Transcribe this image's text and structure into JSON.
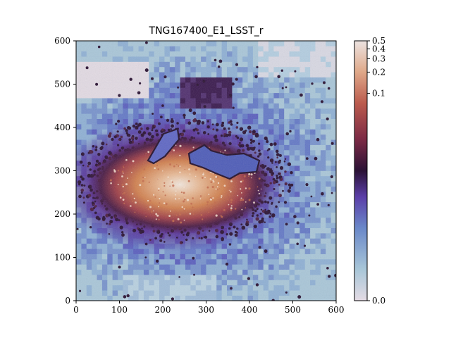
{
  "chart_data": {
    "type": "heatmap",
    "title": "TNG167400_E1_LSST_r",
    "xlabel": "",
    "ylabel": "",
    "xlim": [
      0,
      600
    ],
    "ylim": [
      0,
      600
    ],
    "x_ticks": [
      0,
      100,
      200,
      300,
      400,
      500,
      600
    ],
    "y_ticks": [
      0,
      100,
      200,
      300,
      400,
      500,
      600
    ],
    "colorbar": {
      "ticks": [
        "0.0",
        "0.1",
        "0.2",
        "0.3",
        "0.4",
        "0.5"
      ],
      "tick_values": [
        0.0,
        0.1,
        0.2,
        0.3,
        0.4,
        0.5
      ],
      "scale": "nonlinear (compressed near top)",
      "colormap": "twilight-like",
      "range": [
        0.0,
        0.5
      ]
    },
    "colors": {
      "low": "#e6dde6",
      "light_blue": "#9fbfd3",
      "blue": "#5d73c4",
      "purple": "#5b2b8e",
      "dark": "#2e1538",
      "red": "#a4404e",
      "orange": "#d98a58",
      "high": "#efe3db"
    },
    "features": [
      {
        "kind": "core",
        "center": [
          240,
          260
        ],
        "radii": [
          230,
          110
        ],
        "level": "high"
      },
      {
        "kind": "blob",
        "center": [
          50,
          520
        ],
        "size": [
          120,
          90
        ],
        "level": "low"
      },
      {
        "kind": "blob",
        "center": [
          520,
          560
        ],
        "size": [
          160,
          80
        ],
        "level": "low"
      }
    ]
  }
}
